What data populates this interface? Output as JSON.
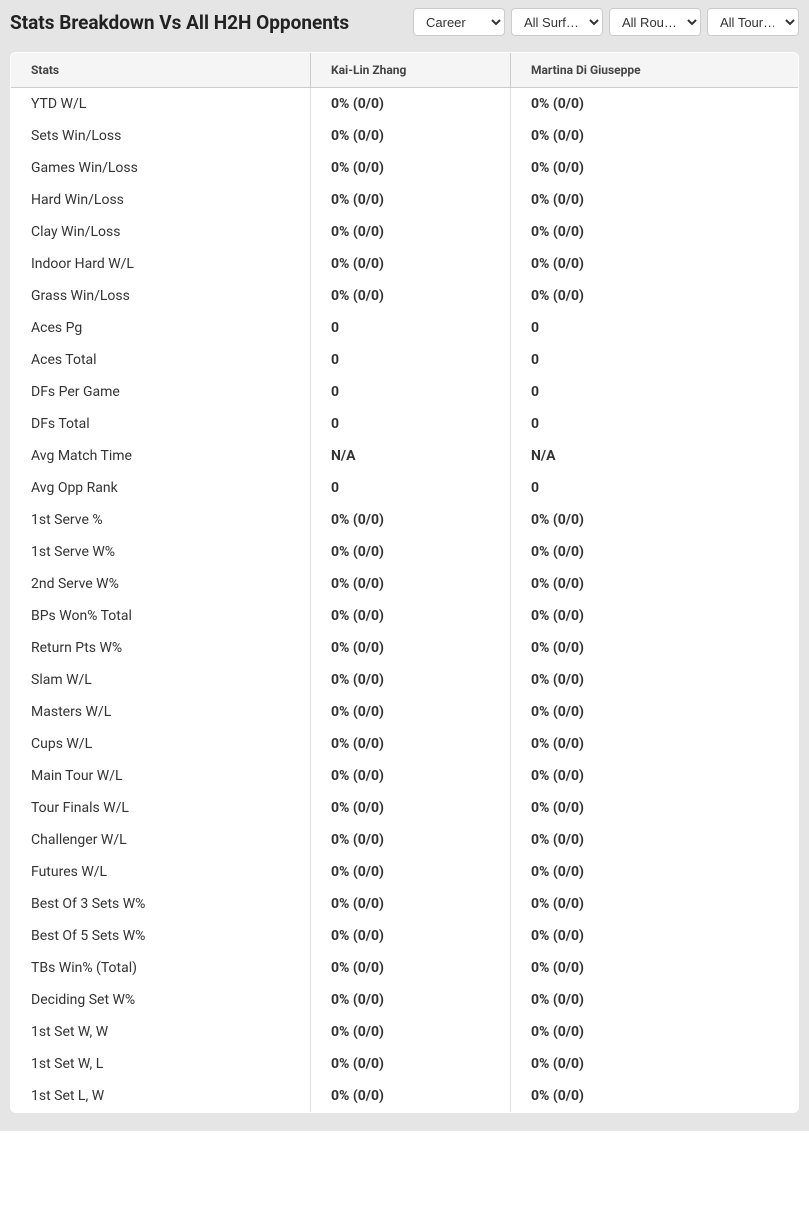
{
  "header": {
    "title": "Stats Breakdown Vs All H2H Opponents",
    "filters": {
      "career": {
        "selected": "Career"
      },
      "surface": {
        "selected": "All Surf…"
      },
      "round": {
        "selected": "All Rou…"
      },
      "tournament": {
        "selected": "All Tour…"
      }
    }
  },
  "table": {
    "columns": {
      "stats": "Stats",
      "player1": "Kai-Lin Zhang",
      "player2": "Martina Di Giuseppe"
    },
    "rows": [
      {
        "label": "YTD W/L",
        "p1": "0% (0/0)",
        "p2": "0% (0/0)"
      },
      {
        "label": "Sets Win/Loss",
        "p1": "0% (0/0)",
        "p2": "0% (0/0)"
      },
      {
        "label": "Games Win/Loss",
        "p1": "0% (0/0)",
        "p2": "0% (0/0)"
      },
      {
        "label": "Hard Win/Loss",
        "p1": "0% (0/0)",
        "p2": "0% (0/0)"
      },
      {
        "label": "Clay Win/Loss",
        "p1": "0% (0/0)",
        "p2": "0% (0/0)"
      },
      {
        "label": "Indoor Hard W/L",
        "p1": "0% (0/0)",
        "p2": "0% (0/0)"
      },
      {
        "label": "Grass Win/Loss",
        "p1": "0% (0/0)",
        "p2": "0% (0/0)"
      },
      {
        "label": "Aces Pg",
        "p1": "0",
        "p2": "0"
      },
      {
        "label": "Aces Total",
        "p1": "0",
        "p2": "0"
      },
      {
        "label": "DFs Per Game",
        "p1": "0",
        "p2": "0"
      },
      {
        "label": "DFs Total",
        "p1": "0",
        "p2": "0"
      },
      {
        "label": "Avg Match Time",
        "p1": "N/A",
        "p2": "N/A"
      },
      {
        "label": "Avg Opp Rank",
        "p1": "0",
        "p2": "0"
      },
      {
        "label": "1st Serve %",
        "p1": "0% (0/0)",
        "p2": "0% (0/0)"
      },
      {
        "label": "1st Serve W%",
        "p1": "0% (0/0)",
        "p2": "0% (0/0)"
      },
      {
        "label": "2nd Serve W%",
        "p1": "0% (0/0)",
        "p2": "0% (0/0)"
      },
      {
        "label": "BPs Won% Total",
        "p1": "0% (0/0)",
        "p2": "0% (0/0)"
      },
      {
        "label": "Return Pts W%",
        "p1": "0% (0/0)",
        "p2": "0% (0/0)"
      },
      {
        "label": "Slam W/L",
        "p1": "0% (0/0)",
        "p2": "0% (0/0)"
      },
      {
        "label": "Masters W/L",
        "p1": "0% (0/0)",
        "p2": "0% (0/0)"
      },
      {
        "label": "Cups W/L",
        "p1": "0% (0/0)",
        "p2": "0% (0/0)"
      },
      {
        "label": "Main Tour W/L",
        "p1": "0% (0/0)",
        "p2": "0% (0/0)"
      },
      {
        "label": "Tour Finals W/L",
        "p1": "0% (0/0)",
        "p2": "0% (0/0)"
      },
      {
        "label": "Challenger W/L",
        "p1": "0% (0/0)",
        "p2": "0% (0/0)"
      },
      {
        "label": "Futures W/L",
        "p1": "0% (0/0)",
        "p2": "0% (0/0)"
      },
      {
        "label": "Best Of 3 Sets W%",
        "p1": "0% (0/0)",
        "p2": "0% (0/0)"
      },
      {
        "label": "Best Of 5 Sets W%",
        "p1": "0% (0/0)",
        "p2": "0% (0/0)"
      },
      {
        "label": "TBs Win% (Total)",
        "p1": "0% (0/0)",
        "p2": "0% (0/0)"
      },
      {
        "label": "Deciding Set W%",
        "p1": "0% (0/0)",
        "p2": "0% (0/0)"
      },
      {
        "label": "1st Set W, W",
        "p1": "0% (0/0)",
        "p2": "0% (0/0)"
      },
      {
        "label": "1st Set W, L",
        "p1": "0% (0/0)",
        "p2": "0% (0/0)"
      },
      {
        "label": "1st Set L, W",
        "p1": "0% (0/0)",
        "p2": "0% (0/0)"
      }
    ]
  },
  "colors": {
    "header_bg": "#e5e5e5",
    "table_bg": "#ffffff",
    "thead_bg": "#f5f5f5",
    "border": "#cccccc",
    "text": "#333333"
  }
}
